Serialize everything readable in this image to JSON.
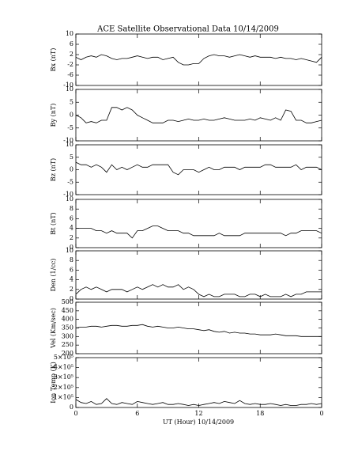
{
  "title": "ACE Satellite Observational Data   10/14/2009",
  "x_axis": {
    "label": "UT (Hour)  10/14/2009",
    "xlim": [
      0,
      24
    ],
    "xticks": [
      0,
      6,
      12,
      18,
      {
        "value": 24,
        "label": "0"
      }
    ],
    "x": [
      0,
      0.5,
      1,
      1.5,
      2,
      2.5,
      3,
      3.5,
      4,
      4.5,
      5,
      5.5,
      6,
      6.5,
      7,
      7.5,
      8,
      8.5,
      9,
      9.5,
      10,
      10.5,
      11,
      11.5,
      12,
      12.5,
      13,
      13.5,
      14,
      14.5,
      15,
      15.5,
      16,
      16.5,
      17,
      17.5,
      18,
      18.5,
      19,
      19.5,
      20,
      20.5,
      21,
      21.5,
      22,
      22.5,
      23,
      23.5,
      24
    ]
  },
  "chart_data": [
    {
      "type": "line",
      "y_label": "Bx (nT)",
      "ylim": [
        -10,
        10
      ],
      "yticks": [
        -10,
        -6,
        -2,
        2,
        6,
        10
      ],
      "values": [
        1,
        0,
        1,
        1.5,
        1,
        2,
        1.5,
        0.5,
        0,
        0.5,
        0.5,
        1,
        1.5,
        1,
        0.5,
        1,
        1,
        0,
        0.5,
        1,
        -1,
        -2,
        -2,
        -1.5,
        -1.5,
        0.5,
        1.5,
        2,
        1.5,
        1.5,
        1,
        1.5,
        2,
        1.5,
        1,
        1.5,
        1,
        1,
        1,
        0.5,
        1,
        0.5,
        0.5,
        0,
        0.5,
        0,
        -0.5,
        -1,
        1
      ]
    },
    {
      "type": "line",
      "y_label": "By (nT)",
      "ylim": [
        -10,
        10
      ],
      "yticks": [
        -10,
        -5,
        0,
        5,
        10
      ],
      "values": [
        0,
        -1,
        -3,
        -2.5,
        -3,
        -2,
        -2,
        3,
        3,
        2,
        3,
        2,
        0,
        -1,
        -2,
        -3,
        -3,
        -3,
        -2,
        -2,
        -2.5,
        -2,
        -1.5,
        -2,
        -2,
        -1.5,
        -2,
        -2,
        -1.5,
        -1,
        -1.5,
        -2,
        -2,
        -2,
        -1.5,
        -2,
        -1,
        -1.5,
        -2,
        -1,
        -2,
        2,
        1.5,
        -2,
        -2,
        -3,
        -3,
        -2.5,
        -2
      ]
    },
    {
      "type": "line",
      "y_label": "Bz (nT)",
      "ylim": [
        -10,
        10
      ],
      "yticks": [
        -10,
        -5,
        0,
        5,
        10
      ],
      "values": [
        3,
        2,
        2,
        1,
        2,
        1,
        -1,
        2,
        0,
        1,
        0,
        1,
        2,
        1,
        1,
        2,
        2,
        2,
        2,
        -1,
        -2,
        0,
        0,
        0,
        -1,
        0,
        1,
        0,
        0,
        1,
        1,
        1,
        0,
        1,
        1,
        1,
        1,
        2,
        2,
        1,
        1,
        1,
        1,
        2,
        0,
        1,
        1,
        1,
        0
      ]
    },
    {
      "type": "line",
      "y_label": "Bt (nT)",
      "ylim": [
        0,
        10
      ],
      "yticks": [
        0,
        2,
        4,
        6,
        8,
        10
      ],
      "values": [
        4,
        4,
        4,
        4,
        3.5,
        3.5,
        3,
        3.5,
        3,
        3,
        3,
        2,
        3.5,
        3.5,
        4,
        4.5,
        4.5,
        4,
        3.5,
        3.5,
        3.5,
        3,
        3,
        2.5,
        2.5,
        2.5,
        2.5,
        2.5,
        3,
        2.5,
        2.5,
        2.5,
        2.5,
        3,
        3,
        3,
        3,
        3,
        3,
        3,
        3,
        2.5,
        3,
        3,
        3.5,
        3.5,
        3.5,
        3.5,
        3
      ]
    },
    {
      "type": "line",
      "y_label": "Den (1/cc)",
      "ylim": [
        0,
        10
      ],
      "yticks": [
        0,
        2,
        4,
        6,
        8,
        10
      ],
      "values": [
        1,
        2,
        2.5,
        2,
        2.5,
        2,
        1.5,
        2,
        2,
        2,
        1.5,
        2,
        2.5,
        2,
        2.5,
        3,
        2.5,
        3,
        2.5,
        2.5,
        3,
        2,
        2.5,
        2,
        1,
        0.5,
        1,
        0.5,
        0.5,
        1,
        1,
        1,
        0.5,
        0.5,
        1,
        1,
        0.5,
        1,
        0.5,
        0.5,
        0.5,
        1,
        0.5,
        1,
        1,
        1.5,
        1.5,
        1.5,
        1.5
      ]
    },
    {
      "type": "line",
      "y_label": "Vel (Km/sec)",
      "ylim": [
        200,
        500
      ],
      "yticks": [
        200,
        250,
        300,
        350,
        400,
        450,
        500
      ],
      "values": [
        350,
        355,
        355,
        360,
        360,
        355,
        360,
        365,
        365,
        360,
        360,
        365,
        365,
        370,
        360,
        355,
        360,
        355,
        350,
        350,
        355,
        350,
        345,
        345,
        340,
        335,
        340,
        330,
        325,
        330,
        320,
        325,
        320,
        320,
        315,
        315,
        310,
        310,
        310,
        315,
        310,
        305,
        305,
        305,
        300,
        300,
        300,
        300,
        300
      ]
    },
    {
      "type": "line",
      "y_label": "Ion Temp (K)",
      "ylim": [
        0,
        500000
      ],
      "yticks": [
        0,
        {
          "value": 100000,
          "label": "1×10⁵"
        },
        {
          "value": 200000,
          "label": "2×10⁵"
        },
        {
          "value": 300000,
          "label": "3×10⁵"
        },
        {
          "value": 400000,
          "label": "4×10⁵"
        },
        {
          "value": 500000,
          "label": "5×10⁵"
        }
      ],
      "values": [
        80000,
        50000,
        40000,
        60000,
        30000,
        40000,
        90000,
        40000,
        30000,
        50000,
        40000,
        30000,
        60000,
        50000,
        40000,
        30000,
        40000,
        50000,
        30000,
        30000,
        40000,
        30000,
        20000,
        30000,
        20000,
        30000,
        40000,
        50000,
        40000,
        60000,
        50000,
        40000,
        70000,
        40000,
        30000,
        40000,
        30000,
        30000,
        40000,
        30000,
        20000,
        30000,
        20000,
        20000,
        30000,
        30000,
        40000,
        30000,
        40000
      ]
    }
  ]
}
